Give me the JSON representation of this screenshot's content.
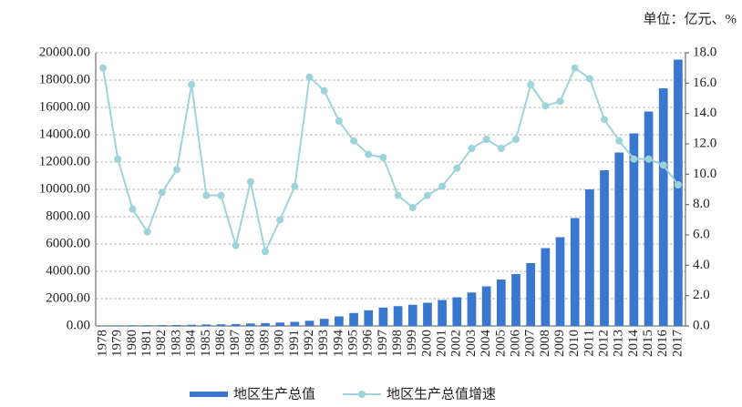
{
  "chart_data": {
    "type": "bar-line",
    "unit_label": "单位：亿元、%",
    "categories": [
      "1978",
      "1979",
      "1980",
      "1981",
      "1982",
      "1983",
      "1984",
      "1985",
      "1986",
      "1987",
      "1988",
      "1989",
      "1990",
      "1991",
      "1992",
      "1993",
      "1994",
      "1995",
      "1996",
      "1997",
      "1998",
      "1999",
      "2000",
      "2001",
      "2002",
      "2003",
      "2004",
      "2005",
      "2006",
      "2007",
      "2008",
      "2009",
      "2010",
      "2011",
      "2012",
      "2013",
      "2014",
      "2015",
      "2016",
      "2017"
    ],
    "series": [
      {
        "name": "地区生产总值",
        "type": "bar",
        "color": "#3a78d0",
        "values": [
          40,
          45,
          50,
          55,
          60,
          70,
          85,
          110,
          120,
          140,
          180,
          210,
          250,
          300,
          380,
          520,
          700,
          950,
          1150,
          1350,
          1450,
          1550,
          1700,
          1900,
          2100,
          2450,
          2900,
          3400,
          3800,
          4600,
          5700,
          6500,
          7900,
          10000,
          11400,
          12700,
          14100,
          15700,
          17400,
          19500
        ]
      },
      {
        "name": "地区生产总值增速",
        "type": "line",
        "axis": "y2",
        "color": "#9fd3dc",
        "values": [
          17.0,
          11.0,
          7.7,
          6.2,
          8.8,
          10.3,
          15.9,
          8.6,
          8.6,
          5.3,
          9.5,
          4.9,
          7.0,
          9.2,
          16.4,
          15.5,
          13.5,
          12.2,
          11.3,
          11.1,
          8.6,
          7.8,
          8.6,
          9.2,
          10.4,
          11.7,
          12.3,
          11.7,
          12.3,
          15.9,
          14.5,
          14.8,
          17.0,
          16.3,
          13.6,
          12.2,
          11.0,
          11.0,
          10.6,
          9.3
        ]
      }
    ],
    "ylim": [
      0,
      20000
    ],
    "yticks": [
      {
        "value": 0,
        "label": "0.00"
      },
      {
        "value": 2000,
        "label": "2000.00"
      },
      {
        "value": 4000,
        "label": "4000.00"
      },
      {
        "value": 6000,
        "label": "6000.00"
      },
      {
        "value": 8000,
        "label": "8000.00"
      },
      {
        "value": 10000,
        "label": "10000.00"
      },
      {
        "value": 12000,
        "label": "12000.00"
      },
      {
        "value": 14000,
        "label": "14000.00"
      },
      {
        "value": 16000,
        "label": "16000.00"
      },
      {
        "value": 18000,
        "label": "18000.00"
      },
      {
        "value": 20000,
        "label": "20000.00"
      }
    ],
    "y2lim": [
      0,
      18
    ],
    "y2ticks": [
      {
        "value": 0,
        "label": "0.0"
      },
      {
        "value": 2,
        "label": "2.0"
      },
      {
        "value": 4,
        "label": "4.0"
      },
      {
        "value": 6,
        "label": "6.0"
      },
      {
        "value": 8,
        "label": "8.0"
      },
      {
        "value": 10,
        "label": "10.0"
      },
      {
        "value": 12,
        "label": "12.0"
      },
      {
        "value": 14,
        "label": "14.0"
      },
      {
        "value": 16,
        "label": "16.0"
      },
      {
        "value": 18,
        "label": "18.0"
      }
    ],
    "grid": true
  }
}
